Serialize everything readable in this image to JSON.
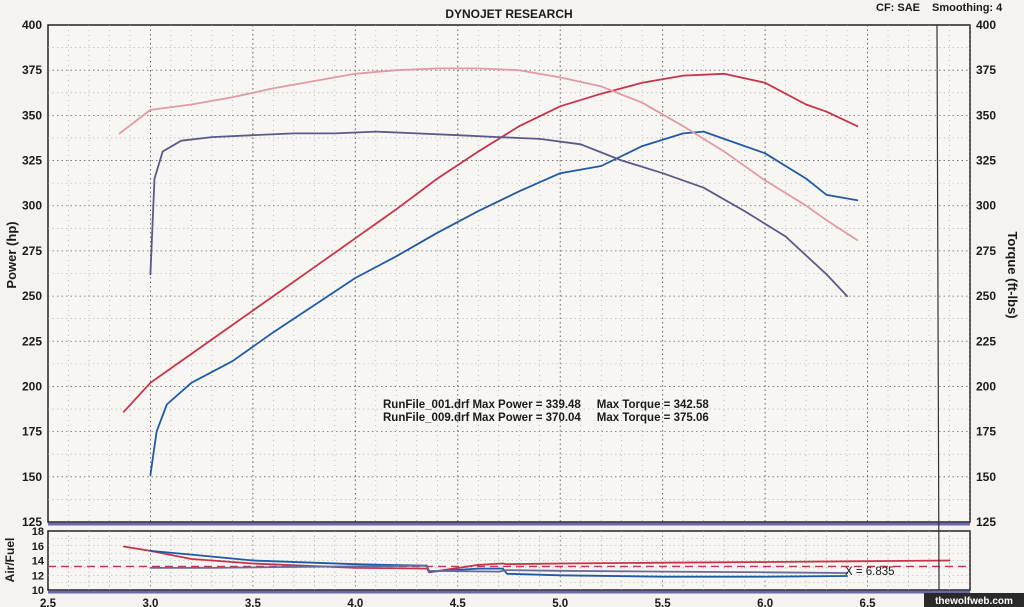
{
  "header": {
    "title": "DYNOJET RESEARCH",
    "cf_label": "CF: SAE",
    "smoothing_label": "Smoothing: 4"
  },
  "watermark": "thewolfweb.com",
  "chart_data": [
    {
      "type": "line",
      "title": "DYNOJET RESEARCH",
      "xlabel": "",
      "ylabel": "Power (hp)",
      "y2label": "Torque (ft-lbs)",
      "xlim": [
        2.5,
        7.0
      ],
      "ylim": [
        125,
        400
      ],
      "y2lim": [
        125,
        400
      ],
      "grid": true,
      "x_ticks": [
        "2.5",
        "3.0",
        "3.5",
        "4.0",
        "4.5",
        "5.0",
        "5.5",
        "6.0",
        "6.5"
      ],
      "y_ticks": [
        "125",
        "150",
        "175",
        "200",
        "225",
        "250",
        "275",
        "300",
        "325",
        "350",
        "375",
        "400"
      ],
      "y2_ticks": [
        "125",
        "150",
        "175",
        "200",
        "225",
        "250",
        "275",
        "300",
        "325",
        "350",
        "375",
        "400"
      ],
      "series": [
        {
          "name": "",
          "color": "#c8334a",
          "x": [
            2.87,
            3.0,
            3.2,
            3.4,
            3.6,
            3.8,
            4.0,
            4.2,
            4.4,
            4.6,
            4.8,
            5.0,
            5.2,
            5.4,
            5.6,
            5.8,
            6.0,
            6.2,
            6.3,
            6.45
          ],
          "y": [
            186,
            202,
            218,
            234,
            250,
            266,
            282,
            298,
            315,
            330,
            344,
            355,
            362,
            368,
            372,
            373,
            368,
            356,
            352,
            344
          ]
        },
        {
          "name": "",
          "color": "#1f5aa6",
          "x": [
            3.0,
            3.03,
            3.08,
            3.2,
            3.4,
            3.6,
            3.8,
            4.0,
            4.2,
            4.4,
            4.6,
            4.8,
            5.0,
            5.2,
            5.4,
            5.6,
            5.7,
            5.8,
            6.0,
            6.2,
            6.3,
            6.45
          ],
          "y": [
            151,
            175,
            190,
            202,
            214,
            230,
            245,
            260,
            272,
            285,
            297,
            308,
            318,
            322,
            333,
            340,
            341,
            337,
            329,
            315,
            306,
            303
          ]
        },
        {
          "name": "",
          "color": "#e39aa7",
          "x": [
            2.85,
            3.0,
            3.2,
            3.4,
            3.6,
            3.8,
            4.0,
            4.2,
            4.4,
            4.6,
            4.8,
            5.0,
            5.2,
            5.4,
            5.6,
            5.8,
            6.0,
            6.2,
            6.3,
            6.45
          ],
          "y": [
            340,
            353,
            356,
            360,
            365,
            369,
            373,
            375,
            376,
            376,
            375,
            371,
            366,
            357,
            344,
            330,
            314,
            300,
            292,
            281
          ]
        },
        {
          "name": "",
          "color": "#5a5a8a",
          "x": [
            3.0,
            3.02,
            3.06,
            3.15,
            3.3,
            3.5,
            3.7,
            3.9,
            4.1,
            4.3,
            4.5,
            4.7,
            4.9,
            5.1,
            5.3,
            5.5,
            5.7,
            5.9,
            6.1,
            6.3,
            6.4
          ],
          "y": [
            262,
            315,
            330,
            336,
            338,
            339,
            340,
            340,
            341,
            340,
            339,
            338,
            337,
            334,
            325,
            318,
            310,
            297,
            283,
            262,
            250
          ]
        }
      ],
      "annotations": [
        {
          "text": "RunFile_001.drf Max Power = 339.48     Max Torque = 342.58"
        },
        {
          "text": "RunFile_009.drf Max Power = 370.04     Max Torque = 375.06"
        }
      ]
    },
    {
      "type": "line",
      "xlabel": "",
      "ylabel": "Air/Fuel",
      "xlim": [
        2.5,
        7.0
      ],
      "ylim": [
        10,
        18
      ],
      "grid": true,
      "x_ticks": [
        "2.5",
        "3.0",
        "3.5",
        "4.0",
        "4.5",
        "5.0",
        "5.5",
        "6.0",
        "6.5"
      ],
      "y_ticks": [
        "10",
        "12",
        "14",
        "16",
        "18"
      ],
      "x_readout": "X = 6.835",
      "reference_line": {
        "y": 13.2,
        "style": "dashed",
        "color": "#c8334a"
      },
      "series": [
        {
          "name": "",
          "color": "#c8334a",
          "x": [
            2.87,
            3.0,
            3.2,
            3.5,
            4.0,
            4.35,
            4.36,
            4.6,
            4.72,
            4.74,
            5.0,
            5.5,
            6.0,
            6.5,
            6.9
          ],
          "y": [
            15.9,
            15.3,
            14.2,
            13.6,
            13.0,
            12.9,
            12.4,
            13.4,
            13.6,
            13.5,
            13.6,
            13.7,
            13.8,
            13.9,
            14.0
          ]
        },
        {
          "name": "",
          "color": "#1f5aa6",
          "x": [
            3.0,
            3.2,
            3.5,
            4.0,
            4.35,
            4.36,
            4.6,
            4.72,
            4.74,
            5.0,
            5.5,
            6.0,
            6.4
          ],
          "y": [
            15.3,
            14.8,
            14.0,
            13.5,
            13.3,
            12.5,
            12.9,
            12.9,
            12.2,
            12.0,
            11.8,
            11.8,
            11.9
          ]
        },
        {
          "name": "",
          "color": "#6a6a9a",
          "x": [
            3.0,
            3.3,
            3.6,
            4.0,
            4.35,
            4.36,
            4.7,
            4.74,
            5.0,
            5.5,
            6.0,
            6.4
          ],
          "y": [
            13.0,
            13.0,
            13.1,
            13.2,
            13.3,
            12.6,
            12.5,
            12.7,
            12.6,
            12.5,
            12.4,
            12.3
          ]
        }
      ]
    }
  ]
}
